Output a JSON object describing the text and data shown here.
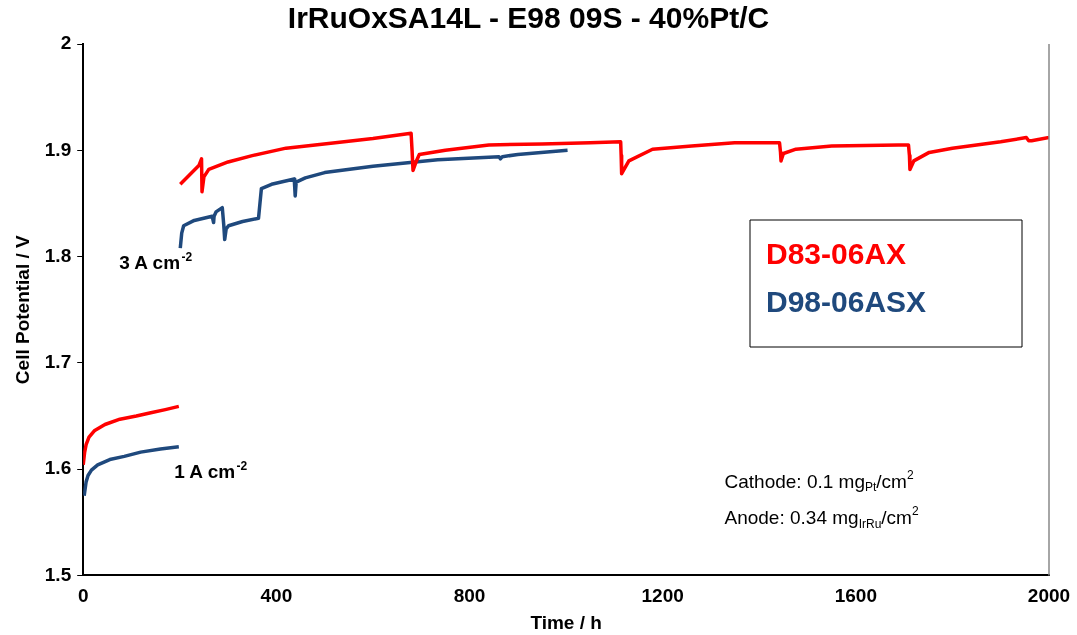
{
  "chart_data": {
    "type": "line",
    "title": "IrRuOxSA14L - E98 09S - 40%Pt/C",
    "xlabel": "Time / h",
    "ylabel": "Cell Potential / V",
    "xlim": [
      0,
      2000
    ],
    "xticks": [
      0,
      400,
      800,
      1200,
      1600,
      2000
    ],
    "ylim": [
      1.5,
      2
    ],
    "yticks": [
      1.5,
      1.6,
      1.7,
      1.8,
      1.9,
      2
    ],
    "grid": false,
    "legend": "right",
    "marker": "none",
    "line_style": "solid",
    "series": [
      {
        "name": "D83-06AX",
        "color": "#ff0000",
        "x": [
          0,
          3,
          6,
          12,
          23,
          45,
          76,
          110,
          140,
          170,
          198,
          200,
          201,
          240,
          245,
          246,
          250,
          260,
          300,
          350,
          420,
          522,
          600,
          679,
          681,
          683,
          690,
          696,
          750,
          840,
          950,
          1050,
          1113,
          1114,
          1115,
          1130,
          1179,
          1260,
          1349,
          1442,
          1444,
          1445,
          1450,
          1476,
          1550,
          1688,
          1709,
          1711,
          1712,
          1720,
          1752,
          1800,
          1900,
          1953,
          1958,
          1964,
          2000
        ],
        "values": [
          1.604,
          1.616,
          1.623,
          1.63,
          1.636,
          1.642,
          1.647,
          1.65,
          1.653,
          1.656,
          1.659,
          null,
          1.868,
          1.886,
          1.892,
          1.861,
          1.875,
          1.882,
          1.889,
          1.895,
          1.902,
          1.907,
          1.911,
          1.916,
          1.9,
          1.881,
          1.89,
          1.896,
          1.9,
          1.905,
          1.906,
          1.907,
          1.908,
          1.895,
          1.878,
          1.89,
          1.901,
          1.904,
          1.907,
          1.907,
          1.898,
          1.89,
          1.897,
          1.901,
          1.904,
          1.905,
          1.905,
          1.895,
          1.882,
          1.89,
          1.898,
          1.902,
          1.908,
          1.912,
          1.909,
          1.909,
          1.912
        ]
      },
      {
        "name": "D98-06ASX",
        "color": "#1f497d",
        "x": [
          2,
          6,
          10,
          17,
          30,
          55,
          85,
          119,
          160,
          198,
          200,
          201,
          204,
          208,
          230,
          267,
          270,
          271,
          275,
          288,
          291,
          293,
          296,
          301,
          330,
          363,
          366,
          369,
          390,
          437,
          438,
          439,
          441,
          460,
          500,
          600,
          734,
          861,
          864,
          868,
          900,
          1003
        ],
        "values": [
          1.575,
          1.588,
          1.594,
          1.599,
          1.604,
          1.609,
          1.612,
          1.616,
          1.619,
          1.621,
          null,
          1.808,
          1.822,
          1.829,
          1.834,
          1.838,
          1.832,
          1.838,
          1.842,
          1.846,
          1.83,
          1.816,
          1.826,
          1.829,
          1.833,
          1.836,
          1.85,
          1.864,
          1.868,
          1.873,
          1.865,
          1.857,
          1.87,
          1.874,
          1.879,
          1.885,
          1.891,
          1.894,
          1.892,
          1.894,
          1.896,
          1.9
        ]
      }
    ],
    "annotations": [
      "3 A cm$^{-2}$",
      "1 A cm$^{-2}$",
      "Cathode: 0.1 mg$_{Pt}$/cm$^{2}$",
      "Anode: 0.34 mg$_{IrRu}$/cm$^{2}$"
    ]
  }
}
